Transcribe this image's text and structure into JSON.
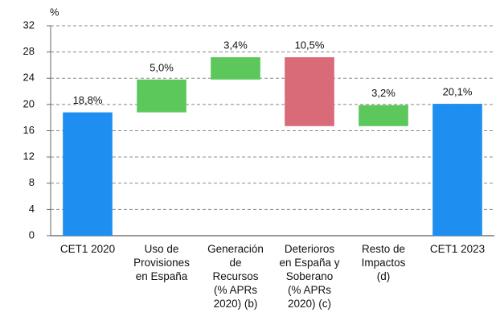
{
  "chart_data": {
    "type": "waterfall",
    "y_label": "%",
    "categories": [
      "CET1 2020",
      "Uso de\nProvisiones\nen España",
      "Generación\nde\nRecursos\n(% APRs\n2020) (b)",
      "Deterioros\nen España y\nSoberano\n(% APRs\n2020) (c)",
      "Resto de\nImpactos\n(d)",
      "CET1 2023"
    ],
    "values": [
      18.8,
      5.0,
      3.4,
      -10.5,
      3.2,
      20.1
    ],
    "value_labels": [
      "18,8%",
      "5,0%",
      "3,4%",
      "10,5%",
      "3,2%",
      "20,1%"
    ],
    "measure": [
      "absolute",
      "relative",
      "relative",
      "relative",
      "relative",
      "absolute"
    ],
    "colors": {
      "absolute": "#1f8ef1",
      "increase": "#5cc85c",
      "decrease": "#d96b78"
    },
    "ylim": [
      0,
      32
    ],
    "yticks": [
      0,
      4,
      8,
      12,
      16,
      20,
      24,
      28,
      32
    ],
    "grid": true
  }
}
